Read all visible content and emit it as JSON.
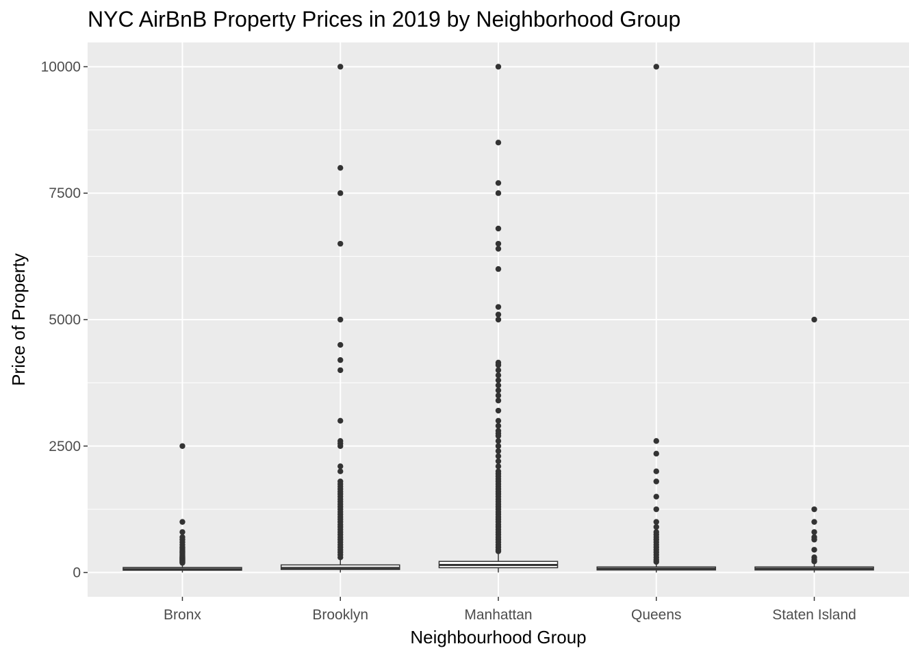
{
  "chart_data": {
    "type": "boxplot",
    "title": "NYC AirBnB Property Prices in 2019 by Neighborhood Group",
    "xlabel": "Neighbourhood Group",
    "ylabel": "Price of Property",
    "ylim": [
      -480,
      10480
    ],
    "y_ticks": [
      0,
      2500,
      5000,
      7500,
      10000
    ],
    "y_tick_labels": [
      "0",
      "2500",
      "5000",
      "7500",
      "10000"
    ],
    "categories": [
      "Bronx",
      "Brooklyn",
      "Manhattan",
      "Queens",
      "Staten Island"
    ],
    "grid": true,
    "colors": {
      "panel_background": "#ebebeb",
      "grid_line": "#ffffff",
      "box_fill": "#ffffff",
      "box_stroke": "#333333",
      "outlier": "#333333",
      "tick_text": "#4d4d4d"
    },
    "boxes": [
      {
        "name": "Bronx",
        "whisker_low": 0,
        "q1": 45,
        "median": 65,
        "q3": 99,
        "whisker_high": 180,
        "outliers": [
          2500,
          1000,
          800,
          700,
          650,
          600,
          550,
          500,
          480,
          450,
          420,
          400,
          380,
          350,
          330,
          310,
          300,
          290,
          280,
          270,
          260,
          250,
          240,
          230,
          220,
          210,
          200,
          190
        ]
      },
      {
        "name": "Brooklyn",
        "whisker_low": 0,
        "q1": 60,
        "median": 90,
        "q3": 150,
        "whisker_high": 285,
        "outliers": [
          10000,
          8000,
          7500,
          6500,
          5000,
          4500,
          4200,
          4000,
          3000,
          2600,
          2550,
          2500,
          2100,
          2000,
          1800,
          1750,
          1700,
          1650,
          1600,
          1550,
          1500,
          1450,
          1400,
          1350,
          1300,
          1250,
          1200,
          1150,
          1100,
          1050,
          1000,
          950,
          900,
          850,
          800,
          750,
          700,
          650,
          600,
          550,
          500,
          450,
          400,
          350,
          300
        ]
      },
      {
        "name": "Manhattan",
        "whisker_low": 0,
        "q1": 95,
        "median": 150,
        "q3": 220,
        "whisker_high": 410,
        "outliers": [
          10000,
          8500,
          7700,
          7500,
          6800,
          6500,
          6400,
          6000,
          5250,
          5100,
          5000,
          4150,
          4100,
          4000,
          3900,
          3800,
          3700,
          3600,
          3500,
          3400,
          3200,
          3000,
          2900,
          2800,
          2750,
          2700,
          2600,
          2500,
          2400,
          2300,
          2200,
          2100,
          2000,
          1950,
          1900,
          1850,
          1800,
          1750,
          1700,
          1650,
          1600,
          1550,
          1500,
          1450,
          1400,
          1350,
          1300,
          1250,
          1200,
          1150,
          1100,
          1050,
          1000,
          950,
          900,
          850,
          800,
          750,
          700,
          650,
          600,
          550,
          500,
          450,
          420
        ]
      },
      {
        "name": "Queens",
        "whisker_low": 0,
        "q1": 50,
        "median": 75,
        "q3": 110,
        "whisker_high": 200,
        "outliers": [
          10000,
          2600,
          2350,
          2000,
          1800,
          1500,
          1250,
          1000,
          900,
          800,
          750,
          700,
          650,
          600,
          550,
          500,
          450,
          400,
          350,
          300,
          250,
          210
        ]
      },
      {
        "name": "Staten Island",
        "whisker_low": 0,
        "q1": 50,
        "median": 75,
        "q3": 110,
        "whisker_high": 200,
        "outliers": [
          5000,
          1250,
          1000,
          800,
          700,
          650,
          450,
          300,
          250,
          220
        ]
      }
    ]
  }
}
